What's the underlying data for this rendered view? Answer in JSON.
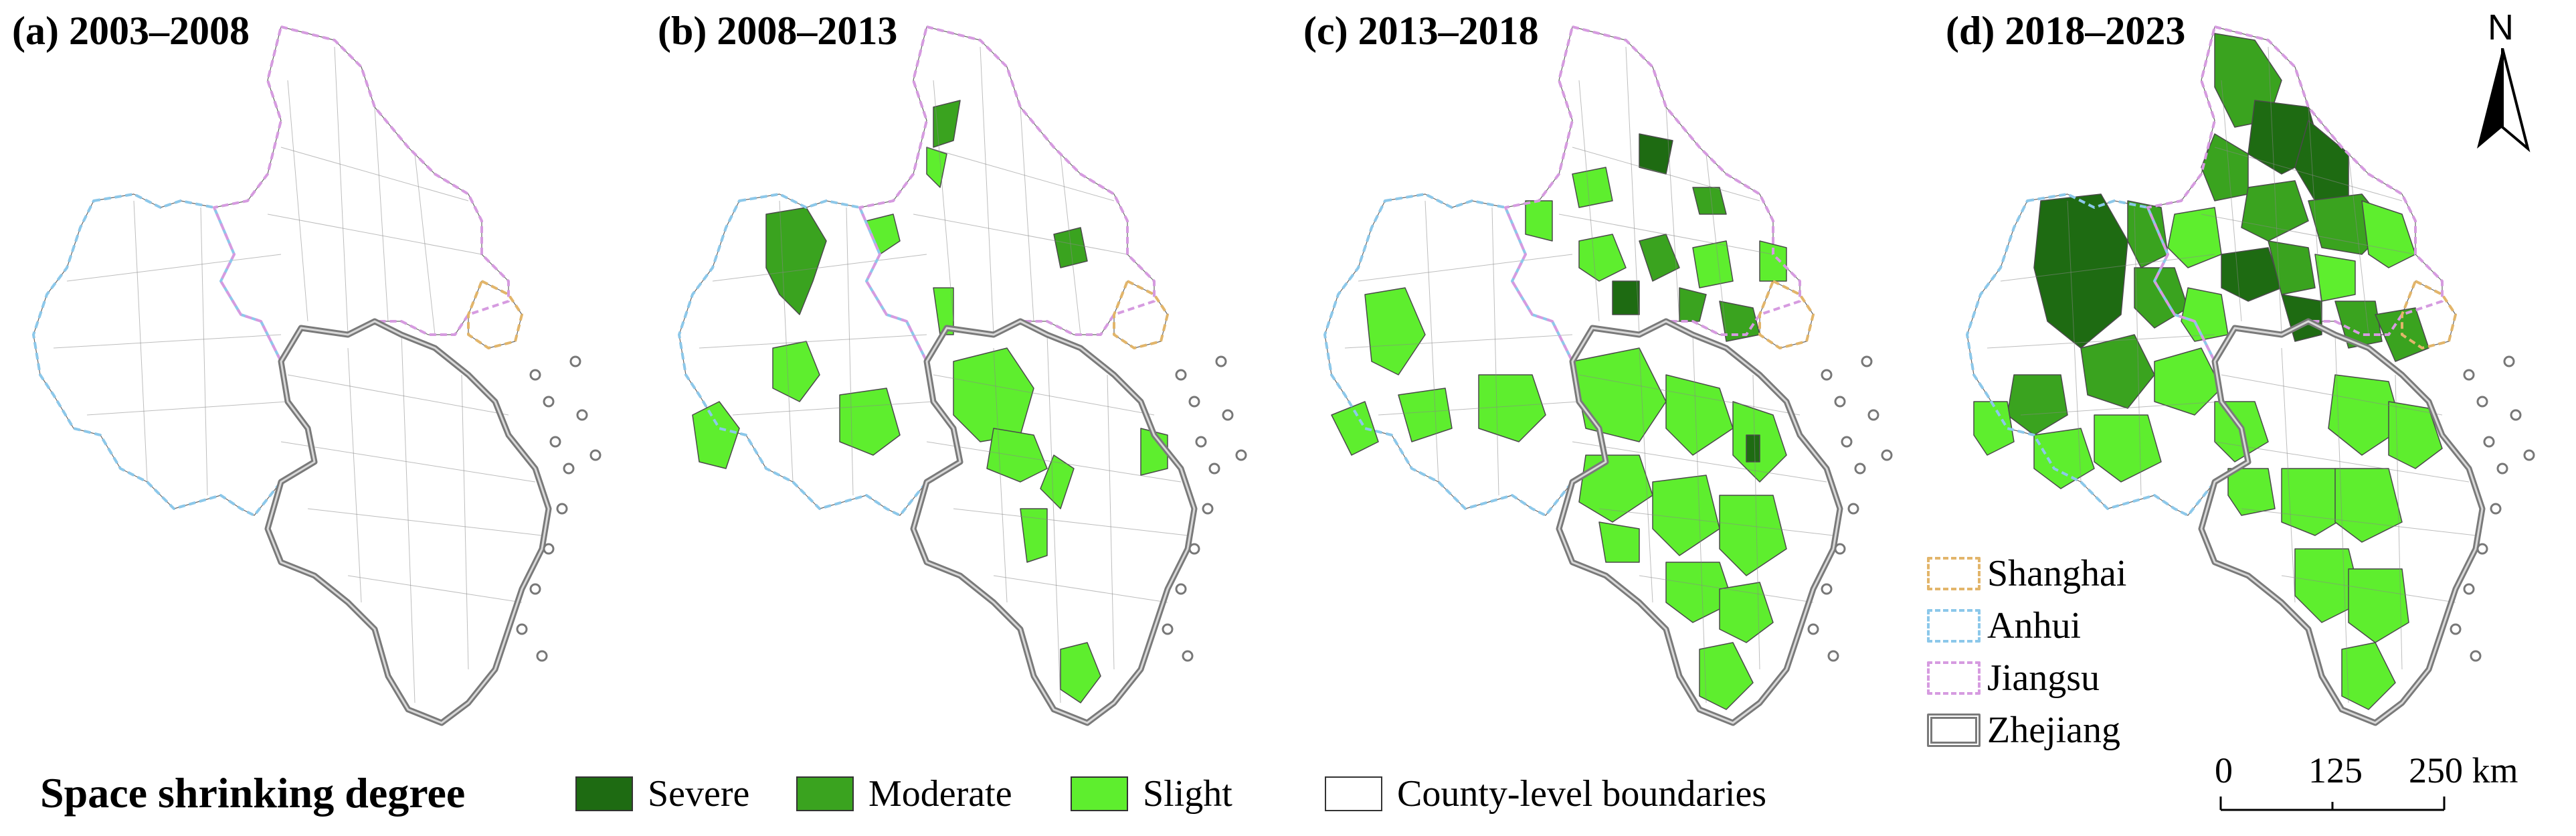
{
  "panels": [
    {
      "id": "a",
      "title": "(a) 2003–2008"
    },
    {
      "id": "b",
      "title": "(b) 2008–2013"
    },
    {
      "id": "c",
      "title": "(c) 2013–2018"
    },
    {
      "id": "d",
      "title": "(d) 2018–2023"
    }
  ],
  "legend": {
    "title": "Space shrinking degree",
    "items": [
      {
        "key": "severe",
        "label": "Severe",
        "color": "#1e6b12"
      },
      {
        "key": "moderate",
        "label": "Moderate",
        "color": "#3aa31f"
      },
      {
        "key": "slight",
        "label": "Slight",
        "color": "#5eee2e"
      },
      {
        "key": "county",
        "label": "County-level boundaries",
        "color": "#ffffff"
      }
    ]
  },
  "provinces": [
    {
      "label": "Shanghai",
      "color": "#e2b56a"
    },
    {
      "label": "Anhui",
      "color": "#8cc8ea"
    },
    {
      "label": "Jiangsu",
      "color": "#d69be0"
    },
    {
      "label": "Zhejiang",
      "color": "#7a7a7a"
    }
  ],
  "north_arrow": {
    "label": "N"
  },
  "scale_bar": {
    "labels": [
      "0",
      "125",
      "250 km"
    ]
  }
}
